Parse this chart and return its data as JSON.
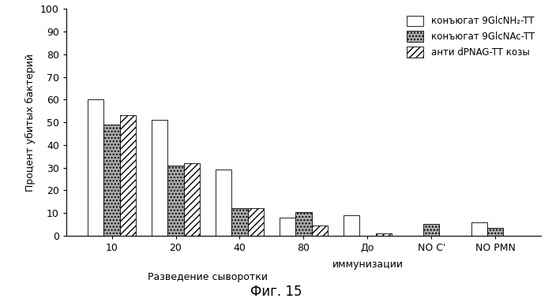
{
  "groups": [
    "10",
    "20",
    "40",
    "80",
    "До\nиммунизации",
    "NO C'",
    "NO PMN"
  ],
  "series": [
    {
      "name": "конъюгат 9GlcNH₂-TT",
      "values": [
        60,
        51,
        29,
        8,
        9,
        0,
        6
      ],
      "hatch": "",
      "facecolor": "white",
      "edgecolor": "black"
    },
    {
      "name": "конъюгат 9GlcNAc-TT",
      "values": [
        49,
        31,
        12,
        10.5,
        0,
        5,
        3.5
      ],
      "hatch": "....",
      "facecolor": "#aaaaaa",
      "edgecolor": "black"
    },
    {
      "name": "анти dPNAG-TT козы",
      "values": [
        53,
        32,
        12,
        4.5,
        1,
        0,
        0
      ],
      "hatch": "////",
      "facecolor": "white",
      "edgecolor": "black"
    }
  ],
  "ylabel": "Процент убитых бактерий",
  "xlabel_main": "Разведение сыворотки",
  "caption": "Фиг. 15",
  "ylim": [
    0,
    100
  ],
  "yticks": [
    0,
    10,
    20,
    30,
    40,
    50,
    60,
    70,
    80,
    90,
    100
  ],
  "bar_width": 0.25,
  "fig_width": 6.99,
  "fig_height": 3.83,
  "dpi": 100,
  "background_color": "white",
  "legend_labels": [
    "конъюгат 9GlcNH₂-TT",
    "конъюгат 9GlcNAc-TT",
    "анти dPNAG-TT козы"
  ]
}
